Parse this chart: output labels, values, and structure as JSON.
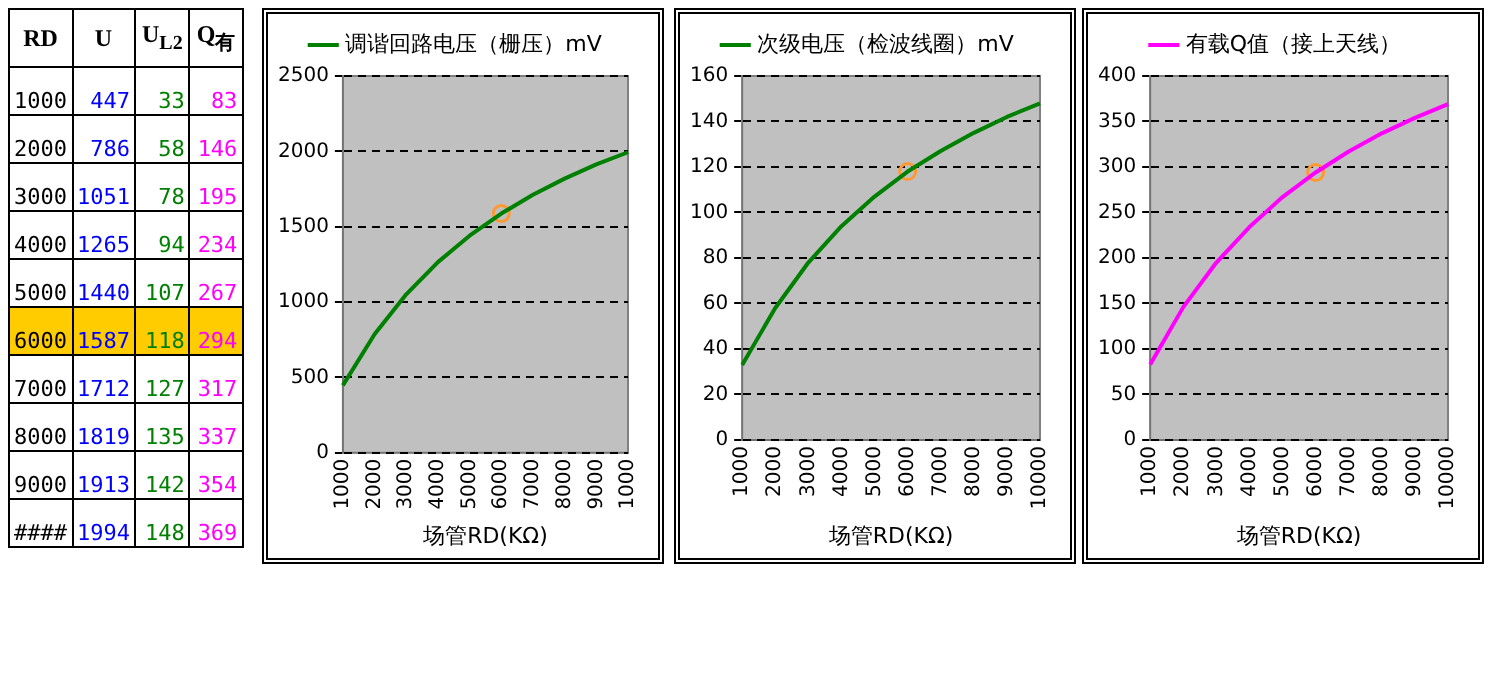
{
  "chart_data": [
    {
      "type": "heatmap",
      "ylabel": "RD",
      "categories": [
        "U",
        "U$_{L2}$",
        "Q$_{有}$"
      ],
      "y_categories": [
        "1000",
        "2000",
        "3000",
        "4000",
        "5000",
        "6000",
        "7000",
        "8000",
        "9000",
        "####"
      ],
      "data_labels": true,
      "cells": [
        [
          447,
          33,
          83
        ],
        [
          786,
          58,
          146
        ],
        [
          1051,
          78,
          195
        ],
        [
          1265,
          94,
          234
        ],
        [
          1440,
          107,
          267
        ],
        [
          1587,
          118,
          294
        ],
        [
          1712,
          127,
          317
        ],
        [
          1819,
          135,
          337
        ],
        [
          1913,
          142,
          354
        ],
        [
          1994,
          148,
          369
        ]
      ]
    },
    {
      "type": "line",
      "categories": [
        "1000",
        "2000",
        "3000",
        "4000",
        "5000",
        "6000",
        "7000",
        "8000",
        "9000",
        "1000"
      ],
      "xlabel": "场管RD(KΩ)",
      "ylim": [
        0,
        2500
      ],
      "yticks": [
        0,
        500,
        1000,
        1500,
        2000,
        2500
      ],
      "grid": "y",
      "legend": "top",
      "series": [
        {
          "name": "调谐回路电压（栅压）mV",
          "color": "#008000",
          "values": [
            447,
            786,
            1051,
            1265,
            1440,
            1587,
            1712,
            1819,
            1913,
            1994
          ]
        },
        {
          "type": "scatter",
          "marker": "circle",
          "color": "#ff9933",
          "values": [
            null,
            null,
            null,
            null,
            null,
            1587,
            null,
            null,
            null,
            null
          ]
        }
      ]
    },
    {
      "type": "line",
      "categories": [
        "1000",
        "2000",
        "3000",
        "4000",
        "5000",
        "6000",
        "7000",
        "8000",
        "9000",
        "10000"
      ],
      "xlabel": "场管RD(KΩ)",
      "ylim": [
        0,
        160
      ],
      "yticks": [
        0,
        20,
        40,
        60,
        80,
        100,
        120,
        140,
        160
      ],
      "grid": "y",
      "legend": "top",
      "series": [
        {
          "name": "次级电压（检波线圈）mV",
          "color": "#008000",
          "values": [
            33,
            58,
            78,
            94,
            107,
            118,
            127,
            135,
            142,
            148
          ]
        },
        {
          "type": "scatter",
          "marker": "circle",
          "color": "#ff9933",
          "values": [
            null,
            null,
            null,
            null,
            null,
            118,
            null,
            null,
            null,
            null
          ]
        }
      ]
    },
    {
      "type": "line",
      "categories": [
        "1000",
        "2000",
        "3000",
        "4000",
        "5000",
        "6000",
        "7000",
        "8000",
        "9000",
        "10000"
      ],
      "xlabel": "场管RD(KΩ)",
      "ylim": [
        0,
        400
      ],
      "yticks": [
        0,
        50,
        100,
        150,
        200,
        250,
        300,
        350,
        400
      ],
      "grid": "y",
      "legend": "top",
      "series": [
        {
          "name": "有载Q值（接上天线）",
          "color": "#ff00ff",
          "values": [
            83,
            146,
            195,
            234,
            267,
            294,
            317,
            337,
            354,
            369
          ]
        },
        {
          "type": "scatter",
          "marker": "circle",
          "color": "#ff9933",
          "values": [
            null,
            null,
            null,
            null,
            null,
            294,
            null,
            null,
            null,
            null
          ]
        }
      ]
    }
  ]
}
